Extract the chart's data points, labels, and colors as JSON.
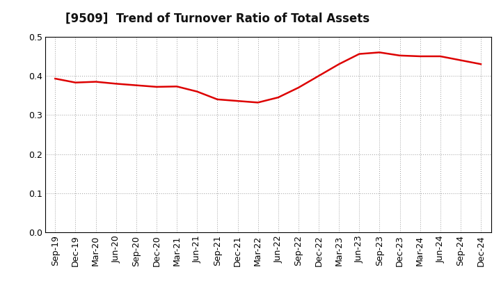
{
  "title": "[9509]  Trend of Turnover Ratio of Total Assets",
  "line_color": "#dd0000",
  "line_width": 1.8,
  "background_color": "#ffffff",
  "grid_color": "#999999",
  "ylim": [
    0.0,
    0.5
  ],
  "yticks": [
    0.0,
    0.1,
    0.2,
    0.3,
    0.4,
    0.5
  ],
  "title_fontsize": 12,
  "tick_fontsize": 9,
  "x_labels": [
    "Sep-19",
    "Dec-19",
    "Mar-20",
    "Jun-20",
    "Sep-20",
    "Dec-20",
    "Mar-21",
    "Jun-21",
    "Sep-21",
    "Dec-21",
    "Mar-22",
    "Jun-22",
    "Sep-22",
    "Dec-22",
    "Mar-23",
    "Jun-23",
    "Sep-23",
    "Dec-23",
    "Mar-24",
    "Jun-24",
    "Sep-24",
    "Dec-24"
  ],
  "values": [
    0.393,
    0.383,
    0.385,
    0.38,
    0.376,
    0.372,
    0.373,
    0.36,
    0.34,
    0.336,
    0.332,
    0.345,
    0.37,
    0.4,
    0.43,
    0.456,
    0.46,
    0.452,
    0.45,
    0.45,
    0.44,
    0.43
  ]
}
